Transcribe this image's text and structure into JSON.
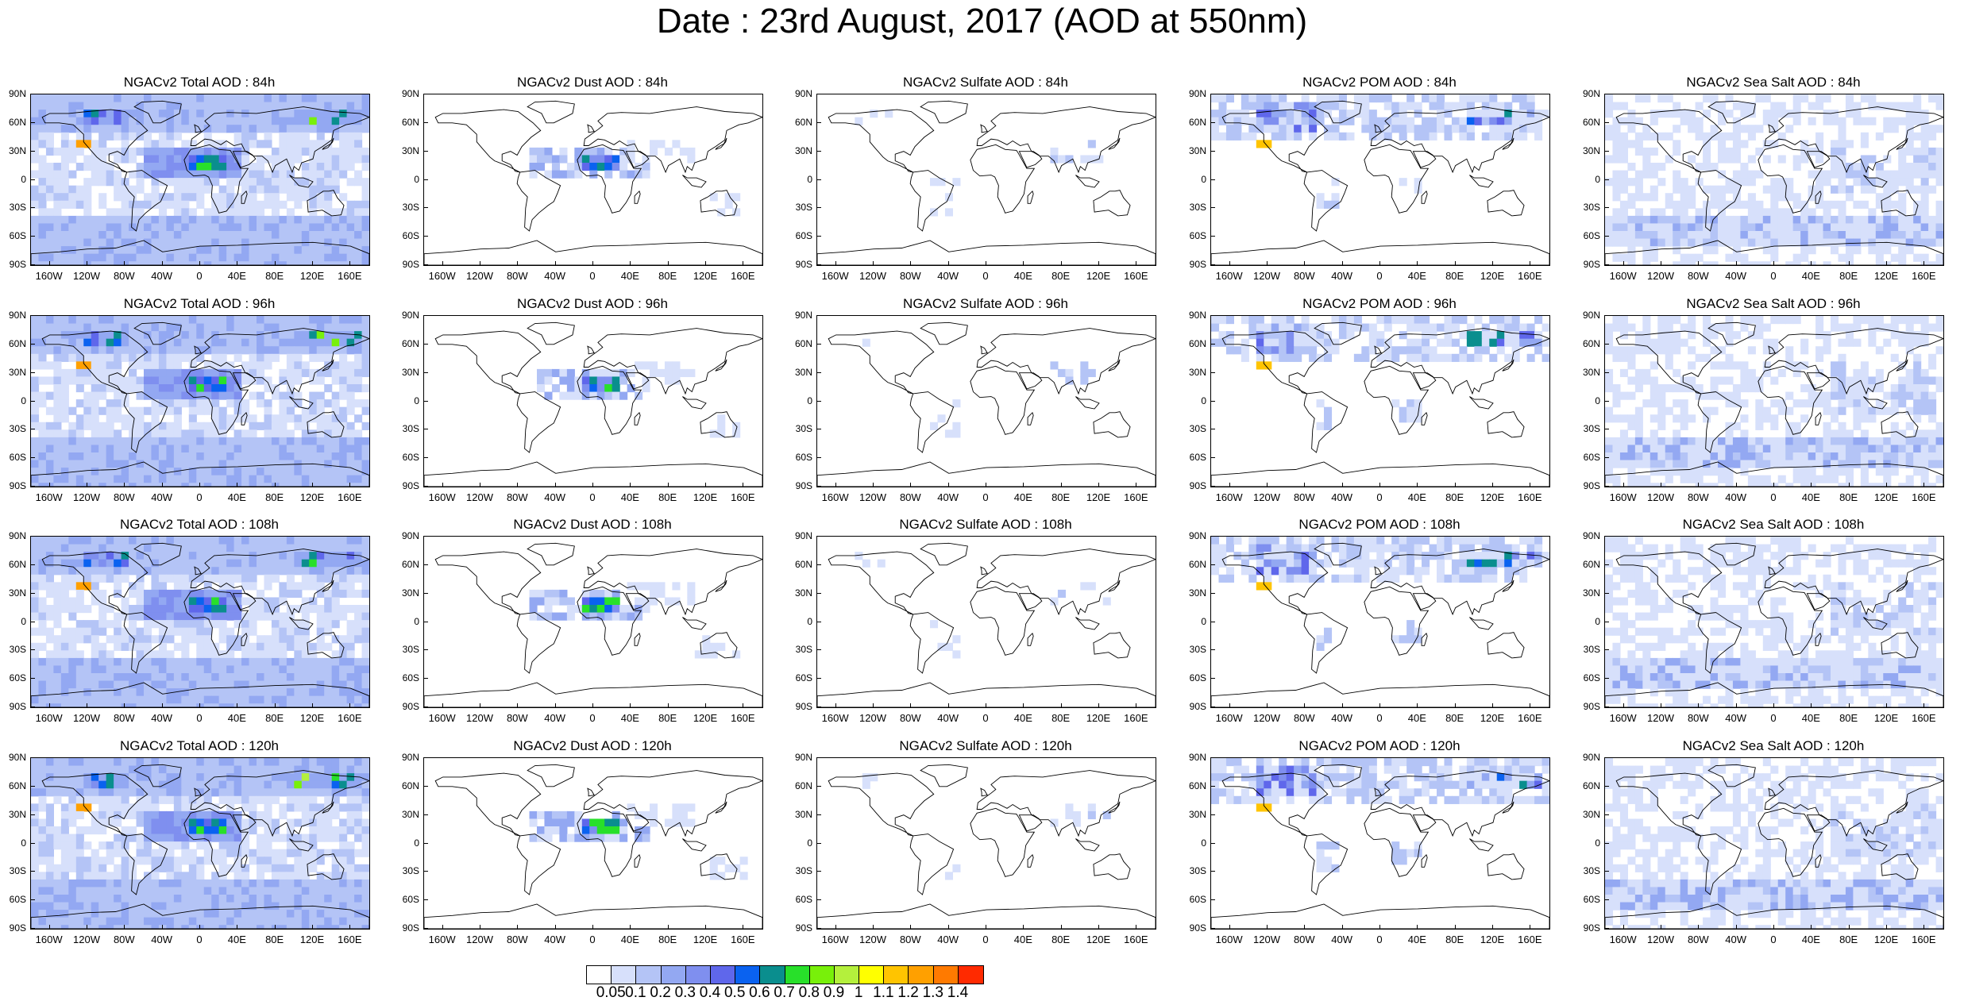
{
  "title": "Date : 23rd August, 2017 (AOD at 550nm)",
  "columns": [
    {
      "key": "total",
      "label": "Total AOD"
    },
    {
      "key": "dust",
      "label": "Dust AOD"
    },
    {
      "key": "sulfate",
      "label": "Sulfate AOD"
    },
    {
      "key": "pom",
      "label": "POM AOD"
    },
    {
      "key": "seasalt",
      "label": "Sea Salt AOD"
    }
  ],
  "panel_titles": [
    [
      "NGACv2 Total AOD : 84h",
      "NGACv2 Dust AOD : 84h",
      "NGACv2 Sulfate AOD : 84h",
      "NGACv2 POM AOD : 84h",
      "NGACv2 Sea Salt AOD : 84h"
    ],
    [
      "NGACv2 Total AOD : 96h",
      "NGACv2 Dust AOD : 96h",
      "NGACv2 Sulfate AOD : 96h",
      "NGACv2 POM AOD : 96h",
      "NGACv2 Sea Salt AOD : 96h"
    ],
    [
      "NGACv2 Total AOD : 108h",
      "NGACv2 Dust AOD : 108h",
      "NGACv2 Sulfate AOD : 108h",
      "NGACv2 POM AOD : 108h",
      "NGACv2 Sea Salt AOD : 108h"
    ],
    [
      "NGACv2 Total AOD : 120h",
      "NGACv2 Dust AOD : 120h",
      "NGACv2 Sulfate AOD : 120h",
      "NGACv2 POM AOD : 120h",
      "NGACv2 Sea Salt  AOD : 120h"
    ]
  ],
  "lat_labels": [
    "90N",
    "60N",
    "30N",
    "0",
    "30S",
    "60S",
    "90S"
  ],
  "lon_labels": [
    "160W",
    "120W",
    "80W",
    "40W",
    "0",
    "40E",
    "80E",
    "120E",
    "160E"
  ],
  "lon_values": [
    -160,
    -120,
    -80,
    -40,
    0,
    40,
    80,
    120,
    160
  ],
  "lat_values": [
    90,
    60,
    30,
    0,
    -30,
    -60,
    -90
  ],
  "colorbar": {
    "labels": [
      "0.05",
      "0.1",
      "0.2",
      "0.3",
      "0.4",
      "0.5",
      "0.6",
      "0.7",
      "0.8",
      "0.9",
      "1",
      "1.1",
      "1.2",
      "1.3",
      "1.4"
    ],
    "colors": [
      "#ffffff",
      "#d7e0fb",
      "#b4c4f6",
      "#93a8f2",
      "#7f8fef",
      "#5f67eb",
      "#0a62f0",
      "#0a8e8e",
      "#28e02a",
      "#78f00a",
      "#b4f03c",
      "#ffff00",
      "#ffc400",
      "#ffa000",
      "#ff7a00",
      "#ff2a00"
    ]
  },
  "shading": {
    "total": "high",
    "dust": "dust",
    "sulfate": "low",
    "pom": "medium",
    "seasalt": "ocean"
  }
}
